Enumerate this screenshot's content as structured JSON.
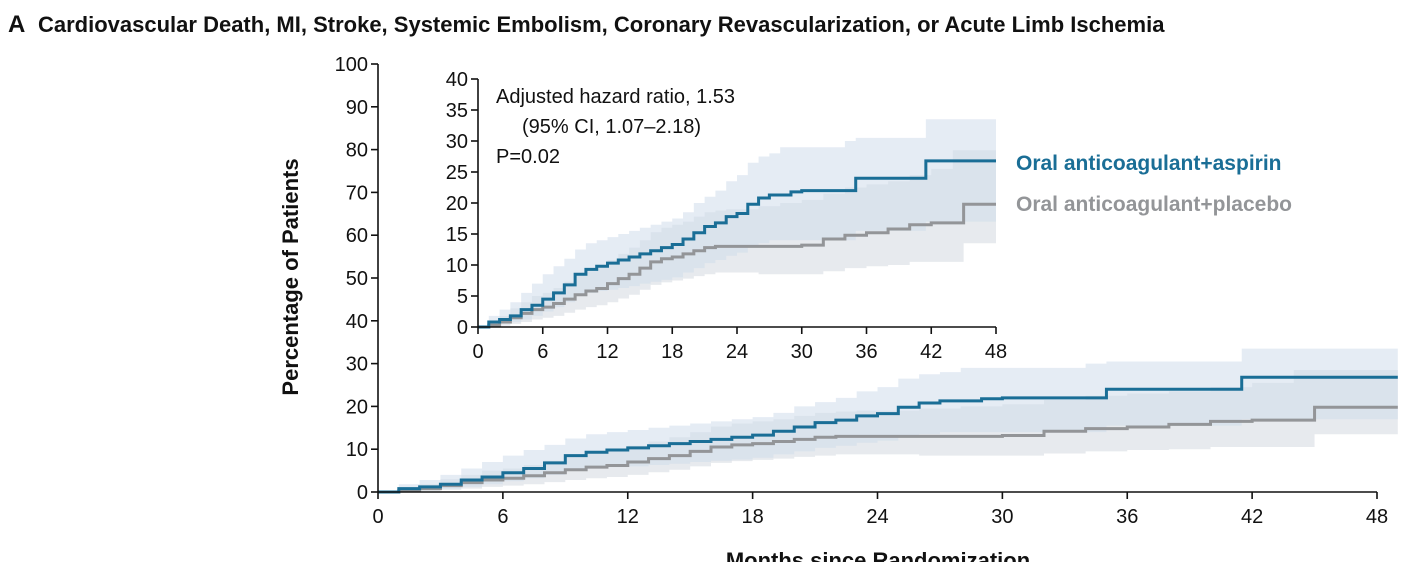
{
  "chart_data": {
    "type": "line",
    "panel_label": "A",
    "title": "Cardiovascular Death, MI, Stroke, Systemic Embolism, Coronary Revascularization, or Acute Limb Ischemia",
    "xlabel": "Months since Randomization",
    "ylabel": "Percentage of Patients",
    "xlim": [
      0,
      48
    ],
    "ylim": [
      0,
      100
    ],
    "x_ticks": [
      "0",
      "6",
      "12",
      "18",
      "24",
      "30",
      "36",
      "42",
      "48"
    ],
    "y_ticks": [
      "0",
      "10",
      "20",
      "30",
      "40",
      "50",
      "60",
      "70",
      "80",
      "90",
      "100"
    ],
    "colors": {
      "aspirin": "#1a6e96",
      "placebo": "#939598",
      "aspirin_band": "#cfddeb",
      "placebo_band": "#dfe3e8"
    },
    "series": [
      {
        "name": "Oral anticoagulant+aspirin",
        "x": [
          0,
          1,
          2,
          3,
          4,
          5,
          6,
          7,
          8,
          9,
          10,
          11,
          12,
          13,
          14,
          15,
          16,
          17,
          18,
          19,
          20,
          21,
          22,
          23,
          24,
          25,
          26,
          27,
          28,
          29,
          30,
          32,
          34,
          35,
          37,
          39,
          41.5,
          42,
          44,
          46,
          48,
          49
        ],
        "y": [
          0,
          0.8,
          1.2,
          1.8,
          2.8,
          3.5,
          4.5,
          5.5,
          6.8,
          8.5,
          9.3,
          9.8,
          10.3,
          10.8,
          11.3,
          11.8,
          12.3,
          12.8,
          13.3,
          14.2,
          15.2,
          16.2,
          16.8,
          17.8,
          18.3,
          19.8,
          20.8,
          21.3,
          21.3,
          21.8,
          22.0,
          22.0,
          22.0,
          24.0,
          24.0,
          24.0,
          26.8,
          26.8,
          26.8,
          26.8,
          26.8,
          26.8
        ],
        "ci_upper": [
          0,
          1.8,
          2.8,
          4.0,
          5.5,
          7.0,
          8.5,
          9.8,
          11.0,
          12.5,
          13.5,
          14.0,
          14.5,
          15.0,
          15.5,
          16.0,
          16.5,
          17.0,
          17.5,
          18.5,
          20.0,
          21.0,
          22.0,
          23.5,
          24.5,
          26.5,
          27.5,
          28.0,
          29.0,
          29.0,
          29.0,
          29.0,
          30.0,
          30.5,
          30.5,
          30.5,
          33.5,
          33.5,
          33.5,
          33.5,
          33.5,
          33.5
        ],
        "ci_lower": [
          0,
          0.3,
          0.5,
          0.8,
          1.2,
          1.8,
          2.5,
          3.2,
          4.0,
          5.0,
          5.5,
          5.8,
          6.0,
          6.3,
          6.6,
          7.0,
          7.3,
          7.6,
          8.0,
          8.8,
          9.5,
          10.3,
          10.8,
          11.5,
          12.0,
          13.0,
          13.5,
          14.0,
          14.0,
          14.0,
          14.0,
          14.0,
          14.0,
          15.5,
          15.5,
          15.5,
          17.0,
          17.0,
          17.0,
          17.0,
          17.0,
          17.0
        ]
      },
      {
        "name": "Oral anticoagulant+placebo",
        "x": [
          0,
          1,
          2,
          3,
          4,
          5,
          6,
          7,
          8,
          9,
          10,
          11,
          12,
          13,
          14,
          15,
          16,
          17,
          18,
          19,
          20,
          21,
          22,
          23,
          24,
          26,
          28,
          30,
          32,
          34,
          36,
          38,
          40,
          42,
          44,
          45,
          46,
          48,
          49
        ],
        "y": [
          0,
          0.3,
          0.8,
          1.5,
          2.2,
          2.8,
          3.2,
          3.8,
          4.5,
          5.2,
          5.8,
          6.2,
          7.0,
          7.8,
          8.5,
          9.5,
          10.5,
          11.0,
          11.3,
          11.8,
          12.3,
          12.8,
          13.0,
          13.0,
          13.0,
          13.0,
          13.0,
          13.2,
          14.2,
          14.8,
          15.2,
          15.8,
          16.5,
          16.8,
          16.8,
          19.8,
          19.8,
          19.8,
          19.8
        ],
        "ci_upper": [
          0,
          0.8,
          1.8,
          3.0,
          4.0,
          5.0,
          5.5,
          6.3,
          7.3,
          8.3,
          9.0,
          9.8,
          10.8,
          11.8,
          12.8,
          14.0,
          15.3,
          16.0,
          16.5,
          17.0,
          17.8,
          18.5,
          18.8,
          19.0,
          19.0,
          19.5,
          20.0,
          20.5,
          21.5,
          22.5,
          23.0,
          23.5,
          24.5,
          25.5,
          28.5,
          28.5,
          28.5,
          28.5,
          28.5
        ],
        "ci_lower": [
          0,
          0,
          0.2,
          0.5,
          0.8,
          1.2,
          1.5,
          1.8,
          2.3,
          2.8,
          3.2,
          3.5,
          4.0,
          4.6,
          5.2,
          6.0,
          6.8,
          7.2,
          7.5,
          7.8,
          8.2,
          8.5,
          8.8,
          8.8,
          8.8,
          8.5,
          8.5,
          8.5,
          9.0,
          9.5,
          9.8,
          10.0,
          10.5,
          10.5,
          10.5,
          13.5,
          13.5,
          13.5,
          13.5
        ]
      }
    ],
    "inset": {
      "xlim": [
        0,
        48
      ],
      "ylim": [
        0,
        40
      ],
      "x_ticks": [
        "0",
        "6",
        "12",
        "18",
        "24",
        "30",
        "36",
        "42",
        "48"
      ],
      "y_ticks": [
        "0",
        "5",
        "10",
        "15",
        "20",
        "25",
        "30",
        "35",
        "40"
      ],
      "annotation": [
        "Adjusted hazard ratio, 1.53",
        "(95% CI, 1.07–2.18)",
        "P=0.02"
      ]
    }
  }
}
